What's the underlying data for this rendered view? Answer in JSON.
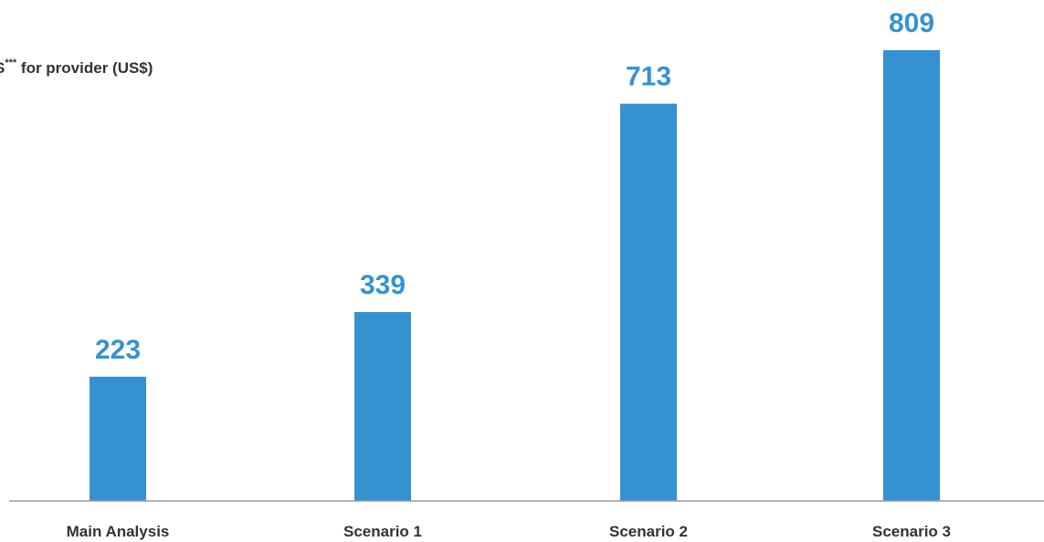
{
  "chart_data": {
    "type": "bar",
    "ylabel_main": "S",
    "ylabel_sup": "***",
    "ylabel_rest": " for provider (US$)",
    "categories": [
      "Main Analysis",
      "Scenario 1",
      "Scenario 2",
      "Scenario 3"
    ],
    "values": [
      223,
      339,
      713,
      809
    ],
    "value_labels": [
      "223",
      "339",
      "713",
      "809"
    ],
    "ylim": [
      0,
      809
    ],
    "grid": false,
    "bar_color": "#3592d0",
    "label_color": "#3592d0",
    "axis_color": "#9a9a9a"
  }
}
